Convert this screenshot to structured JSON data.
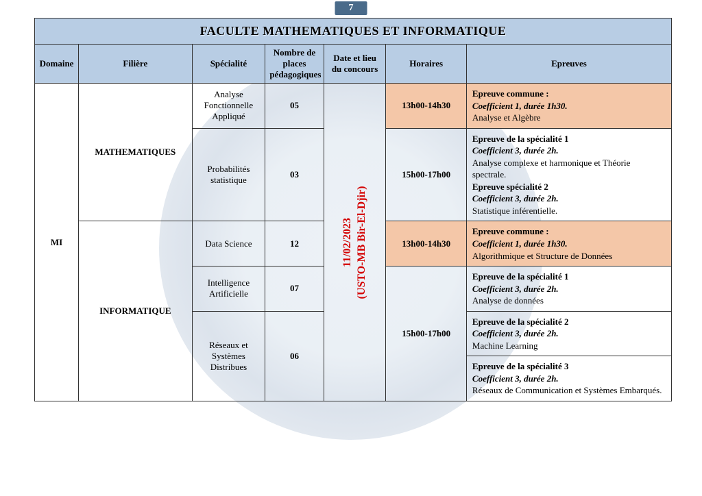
{
  "page_number": "7",
  "title": "FACULTE MATHEMATIQUES ET INFORMATIQUE",
  "headers": {
    "domaine": "Domaine",
    "filiere": "Filière",
    "specialite": "Spécialité",
    "nb_places": "Nombre de places pédagogiques",
    "date_lieu": "Date et lieu du concours",
    "horaires": "Horaires",
    "epreuves": "Epreuves"
  },
  "domaine": "MI",
  "date_lieu_line1": "11/02/2023",
  "date_lieu_line2": "(USTO-MB Bir-El-Djir)",
  "filiere": {
    "math": "MATHEMATIQUES",
    "info": "INFORMATIQUE"
  },
  "rows": {
    "r1": {
      "spec": "Analyse Fonctionnelle Appliqué",
      "nb": "05",
      "hor": "13h00-14h30",
      "ep_t": "Epreuve commune :",
      "ep_c": "Coefficient 1, durée 1h30.",
      "ep_d": "Analyse et Algèbre"
    },
    "r2": {
      "spec": "Probabilités statistique",
      "nb": "03",
      "hor": "15h00-17h00",
      "ep_t1": "Epreuve de la spécialité 1",
      "ep_c1": "Coefficient 3, durée 2h.",
      "ep_d1": "Analyse complexe et harmonique et Théorie spectrale.",
      "ep_t2": "Epreuve spécialité 2",
      "ep_c2": "Coefficient 3, durée 2h.",
      "ep_d2": "Statistique inférentielle."
    },
    "r3": {
      "spec": "Data Science",
      "nb": "12",
      "hor": "13h00-14h30",
      "ep_t": "Epreuve commune :",
      "ep_c": "Coefficient 1, durée 1h30.",
      "ep_d": "Algorithmique et Structure de Données"
    },
    "r4": {
      "spec": "Intelligence Artificielle",
      "nb": "07",
      "ep_t": "Epreuve de la spécialité 1",
      "ep_c": "Coefficient 3, durée 2h.",
      "ep_d": "Analyse de données"
    },
    "hor_info2": "15h00-17h00",
    "r5": {
      "spec": "Réseaux et Systèmes Distribues",
      "nb": "06",
      "ep_t1": "Epreuve de la spécialité 2",
      "ep_c1": "Coefficient 3, durée 2h.",
      "ep_d1": "Machine Learning",
      "ep_t2": "Epreuve de la spécialité 3",
      "ep_c2": "Coefficient 3, durée 2h.",
      "ep_d2": "Réseaux de Communication et Systèmes Embarqués."
    }
  },
  "style": {
    "header_bg": "#b8cde4",
    "peach_bg": "#f4c7a8",
    "date_color": "#d40000",
    "border_color": "#333333",
    "pagebadge_bg": "#4a6b8a"
  }
}
